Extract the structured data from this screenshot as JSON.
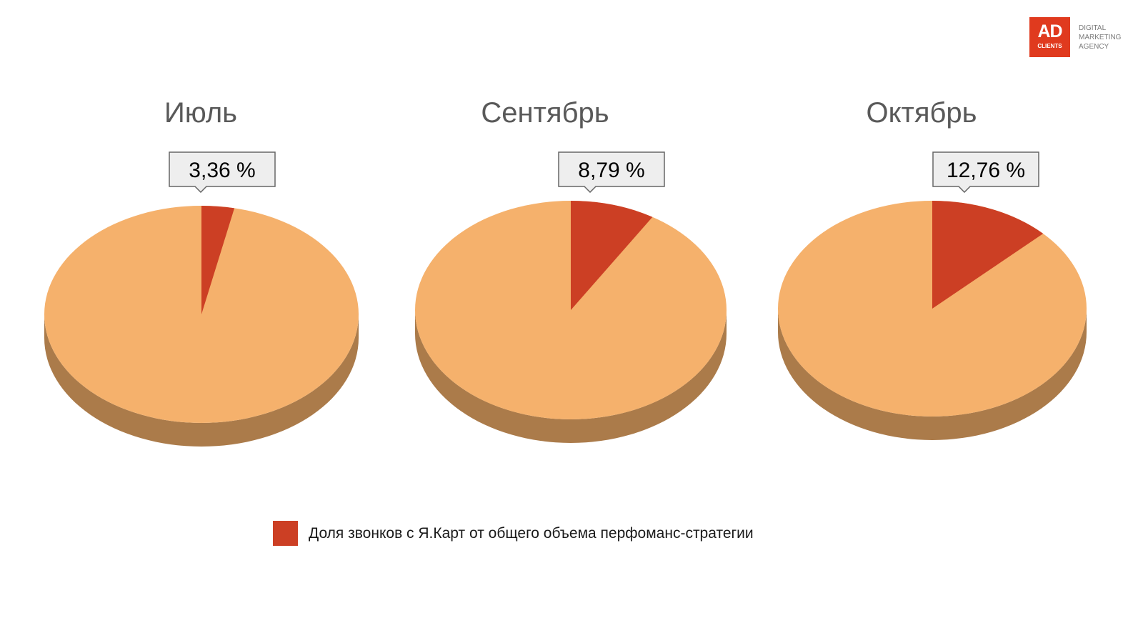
{
  "logo": {
    "text_main": "AD",
    "text_sub": "CLIENTS",
    "tagline": [
      "DIGITAL",
      "MARKETING",
      "AGENCY"
    ],
    "color": "#e03a1e"
  },
  "legend": {
    "label": "Доля звонков с Я.Карт от общего объема перфоманс-стратегии"
  },
  "colors": {
    "share": "#cc3f24",
    "rest_top": "#f5b16c",
    "rest_side": "#ab7b4a",
    "share_side": "#8f2c19",
    "callout_fill": "#eeeeee",
    "callout_stroke": "#666666"
  },
  "chart_data": [
    {
      "type": "pie",
      "title": "Июль",
      "slices": [
        {
          "label": "Доля звонков с Я.Карт от общего объема перфоманс-стратегии",
          "value": 3.36
        }
      ],
      "value_label": "3,36 %"
    },
    {
      "type": "pie",
      "title": "Сентябрь",
      "slices": [
        {
          "label": "Доля звонков с Я.Карт от общего объема перфоманс-стратегии",
          "value": 8.79
        }
      ],
      "value_label": "8,79 %"
    },
    {
      "type": "pie",
      "title": "Октябрь",
      "slices": [
        {
          "label": "Доля звонков с Я.Карт от общего объема перфоманс-стратегии",
          "value": 12.76
        }
      ],
      "value_label": "12,76 %"
    }
  ]
}
